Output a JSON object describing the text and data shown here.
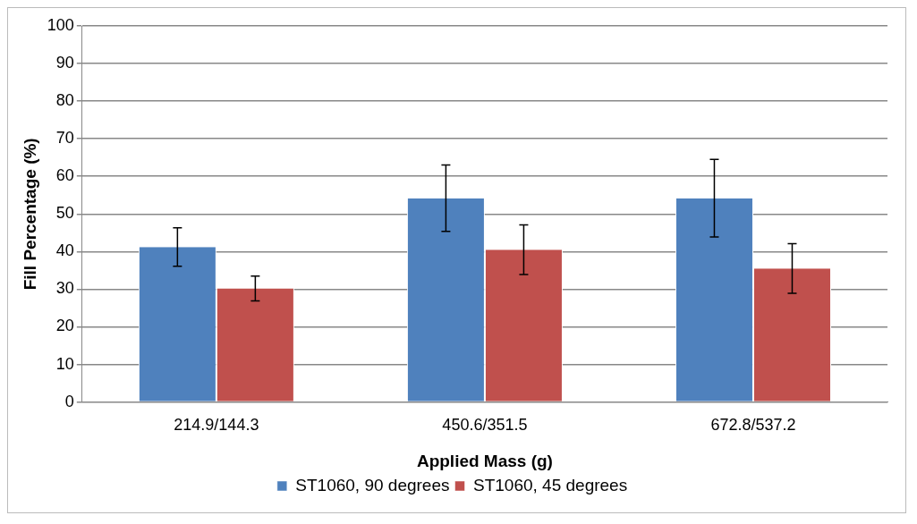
{
  "chart_data": {
    "type": "bar",
    "xlabel": "Applied Mass (g)",
    "ylabel": "Fill Percentage (%)",
    "categories": [
      "214.9/144.3",
      "450.6/351.5",
      "672.8/537.2"
    ],
    "series": [
      {
        "name": "ST1060, 90 degrees",
        "color": "#4f81bd",
        "values": [
          41.2,
          54.2,
          54.2
        ],
        "errors": [
          5.1,
          8.8,
          10.3
        ]
      },
      {
        "name": "ST1060, 45 degrees",
        "color": "#c0504d",
        "values": [
          30.2,
          40.5,
          35.5
        ],
        "errors": [
          3.3,
          6.6,
          6.6
        ]
      }
    ],
    "ylim": [
      0,
      100
    ],
    "yticks": [
      0,
      10,
      20,
      30,
      40,
      50,
      60,
      70,
      80,
      90,
      100
    ],
    "grid": "y",
    "legend": "bottom"
  }
}
